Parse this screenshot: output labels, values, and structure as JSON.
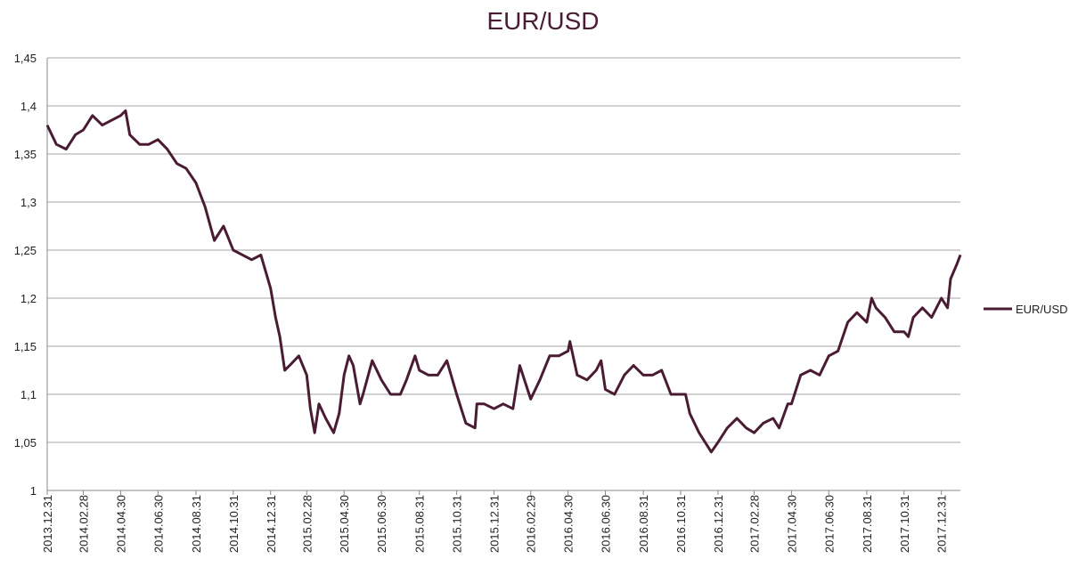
{
  "chart_data": {
    "type": "line",
    "title": "EUR/USD",
    "xlabel": "",
    "ylabel": "",
    "ylim": [
      1,
      1.45
    ],
    "y_ticks": [
      1,
      1.05,
      1.1,
      1.15,
      1.2,
      1.25,
      1.3,
      1.35,
      1.4,
      1.45
    ],
    "y_tick_labels": [
      "1",
      "1,05",
      "1,1",
      "1,15",
      "1,2",
      "1,25",
      "1,3",
      "1,35",
      "1,4",
      "1,45"
    ],
    "x_tick_labels": [
      "2013.12.31",
      "2014.02.28",
      "2014.04.30",
      "2014.06.30",
      "2014.08.31",
      "2014.10.31",
      "2014.12.31",
      "2015.02.28",
      "2015.04.30",
      "2015.06.30",
      "2015.08.31",
      "2015.10.31",
      "2015.12.31",
      "2016.02.29",
      "2016.04.30",
      "2016.06.30",
      "2016.08.31",
      "2016.10.31",
      "2016.12.31",
      "2017.02.28",
      "2017.04.30",
      "2017.06.30",
      "2017.08.31",
      "2017.10.31",
      "2017.12.31"
    ],
    "grid": true,
    "legend": "right",
    "line_color": "#4a1c33",
    "series": [
      {
        "name": "EUR/USD",
        "x": [
          "2013-12-31",
          "2014-01-15",
          "2014-01-31",
          "2014-02-15",
          "2014-02-28",
          "2014-03-15",
          "2014-03-31",
          "2014-04-15",
          "2014-04-30",
          "2014-05-08",
          "2014-05-15",
          "2014-05-31",
          "2014-06-15",
          "2014-06-30",
          "2014-07-15",
          "2014-07-31",
          "2014-08-15",
          "2014-08-31",
          "2014-09-15",
          "2014-09-30",
          "2014-10-15",
          "2014-10-31",
          "2014-11-15",
          "2014-11-30",
          "2014-12-15",
          "2014-12-31",
          "2015-01-08",
          "2015-01-15",
          "2015-01-23",
          "2015-01-31",
          "2015-02-15",
          "2015-02-28",
          "2015-03-06",
          "2015-03-13",
          "2015-03-20",
          "2015-03-31",
          "2015-04-13",
          "2015-04-22",
          "2015-04-30",
          "2015-05-08",
          "2015-05-15",
          "2015-05-26",
          "2015-05-31",
          "2015-06-15",
          "2015-06-30",
          "2015-07-15",
          "2015-07-31",
          "2015-08-10",
          "2015-08-24",
          "2015-08-31",
          "2015-09-15",
          "2015-09-30",
          "2015-10-15",
          "2015-10-31",
          "2015-11-15",
          "2015-11-30",
          "2015-12-03",
          "2015-12-15",
          "2015-12-31",
          "2016-01-15",
          "2016-01-31",
          "2016-02-11",
          "2016-02-29",
          "2016-03-15",
          "2016-03-31",
          "2016-04-15",
          "2016-04-30",
          "2016-05-03",
          "2016-05-15",
          "2016-05-31",
          "2016-06-15",
          "2016-06-23",
          "2016-06-30",
          "2016-07-15",
          "2016-07-31",
          "2016-08-15",
          "2016-08-31",
          "2016-09-15",
          "2016-09-30",
          "2016-10-15",
          "2016-10-31",
          "2016-11-08",
          "2016-11-15",
          "2016-11-30",
          "2016-12-15",
          "2016-12-20",
          "2016-12-31",
          "2017-01-15",
          "2017-01-31",
          "2017-02-15",
          "2017-02-28",
          "2017-03-15",
          "2017-03-31",
          "2017-04-10",
          "2017-04-24",
          "2017-04-30",
          "2017-05-15",
          "2017-05-31",
          "2017-06-15",
          "2017-06-30",
          "2017-07-15",
          "2017-07-31",
          "2017-08-15",
          "2017-08-31",
          "2017-09-08",
          "2017-09-15",
          "2017-09-30",
          "2017-10-15",
          "2017-10-31",
          "2017-11-07",
          "2017-11-15",
          "2017-11-30",
          "2017-12-15",
          "2017-12-31",
          "2018-01-10",
          "2018-01-15",
          "2018-01-25",
          "2018-01-31"
        ],
        "y": [
          1.38,
          1.36,
          1.355,
          1.37,
          1.375,
          1.39,
          1.38,
          1.385,
          1.39,
          1.395,
          1.37,
          1.36,
          1.36,
          1.365,
          1.355,
          1.34,
          1.335,
          1.32,
          1.295,
          1.26,
          1.275,
          1.25,
          1.245,
          1.24,
          1.245,
          1.21,
          1.18,
          1.16,
          1.125,
          1.13,
          1.14,
          1.12,
          1.085,
          1.06,
          1.09,
          1.075,
          1.06,
          1.08,
          1.12,
          1.14,
          1.13,
          1.09,
          1.1,
          1.135,
          1.115,
          1.1,
          1.1,
          1.115,
          1.14,
          1.125,
          1.12,
          1.12,
          1.135,
          1.1,
          1.07,
          1.065,
          1.09,
          1.09,
          1.085,
          1.09,
          1.085,
          1.13,
          1.095,
          1.115,
          1.14,
          1.14,
          1.145,
          1.155,
          1.12,
          1.115,
          1.125,
          1.135,
          1.105,
          1.1,
          1.12,
          1.13,
          1.12,
          1.12,
          1.125,
          1.1,
          1.1,
          1.1,
          1.08,
          1.06,
          1.045,
          1.04,
          1.05,
          1.065,
          1.075,
          1.065,
          1.06,
          1.07,
          1.075,
          1.065,
          1.09,
          1.09,
          1.12,
          1.125,
          1.12,
          1.14,
          1.145,
          1.175,
          1.185,
          1.175,
          1.2,
          1.19,
          1.18,
          1.165,
          1.165,
          1.16,
          1.18,
          1.19,
          1.18,
          1.2,
          1.19,
          1.22,
          1.235,
          1.245
        ]
      }
    ]
  }
}
